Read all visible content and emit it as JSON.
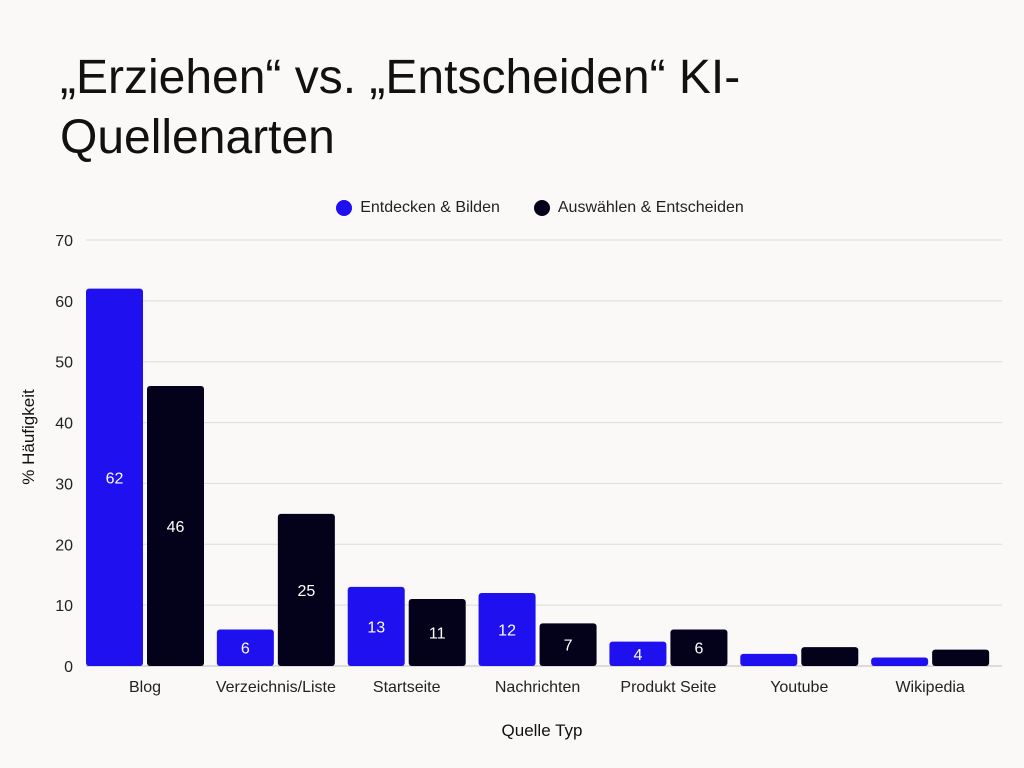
{
  "chart_data": {
    "type": "bar",
    "title": "„Erziehen“ vs. „Entscheiden“ KI-Quellenarten",
    "xlabel": "Quelle Typ",
    "ylabel": "% Häufigkeit",
    "ylim": [
      0,
      70
    ],
    "yticks": [
      0,
      10,
      20,
      30,
      40,
      50,
      60,
      70
    ],
    "grid": true,
    "legend": "top-center",
    "categories": [
      "Blog",
      "Verzeichnis/Liste",
      "Startseite",
      "Nachrichten",
      "Produkt Seite",
      "Youtube",
      "Wikipedia"
    ],
    "series": [
      {
        "name": "Entdecken & Bilden",
        "color": "#1f10f0",
        "values": [
          62,
          6,
          13,
          12,
          4,
          2,
          1.4
        ],
        "labels": [
          "62",
          "6",
          "13",
          "12",
          "4",
          "",
          ""
        ]
      },
      {
        "name": "Auswählen & Entscheiden",
        "color": "#03021a",
        "values": [
          46,
          25,
          11,
          7,
          6,
          3.1,
          2.7
        ],
        "labels": [
          "46",
          "25",
          "11",
          "7",
          "6",
          "",
          ""
        ]
      }
    ]
  }
}
